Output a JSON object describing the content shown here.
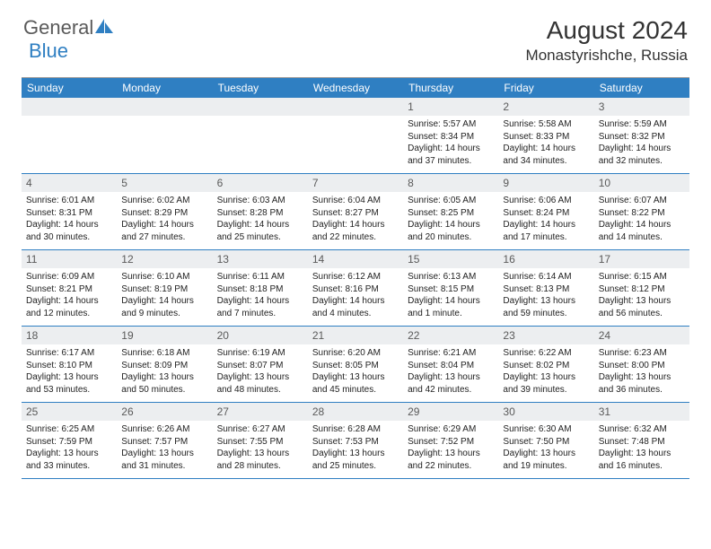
{
  "brand": {
    "name_part1": "General",
    "name_part2": "Blue",
    "logo_color": "#2f7fc2",
    "text_color": "#5a5a5a"
  },
  "title": "August 2024",
  "location": "Monastyrishche, Russia",
  "colors": {
    "header_bg": "#2f7fc2",
    "header_text": "#ffffff",
    "daynum_bg": "#eceef0",
    "daynum_text": "#5a5a5a",
    "body_text": "#222222",
    "rule": "#2f7fc2"
  },
  "weekdays": [
    "Sunday",
    "Monday",
    "Tuesday",
    "Wednesday",
    "Thursday",
    "Friday",
    "Saturday"
  ],
  "weeks": [
    [
      {
        "n": "",
        "sunrise": "",
        "sunset": "",
        "dl1": "",
        "dl2": ""
      },
      {
        "n": "",
        "sunrise": "",
        "sunset": "",
        "dl1": "",
        "dl2": ""
      },
      {
        "n": "",
        "sunrise": "",
        "sunset": "",
        "dl1": "",
        "dl2": ""
      },
      {
        "n": "",
        "sunrise": "",
        "sunset": "",
        "dl1": "",
        "dl2": ""
      },
      {
        "n": "1",
        "sunrise": "Sunrise: 5:57 AM",
        "sunset": "Sunset: 8:34 PM",
        "dl1": "Daylight: 14 hours",
        "dl2": "and 37 minutes."
      },
      {
        "n": "2",
        "sunrise": "Sunrise: 5:58 AM",
        "sunset": "Sunset: 8:33 PM",
        "dl1": "Daylight: 14 hours",
        "dl2": "and 34 minutes."
      },
      {
        "n": "3",
        "sunrise": "Sunrise: 5:59 AM",
        "sunset": "Sunset: 8:32 PM",
        "dl1": "Daylight: 14 hours",
        "dl2": "and 32 minutes."
      }
    ],
    [
      {
        "n": "4",
        "sunrise": "Sunrise: 6:01 AM",
        "sunset": "Sunset: 8:31 PM",
        "dl1": "Daylight: 14 hours",
        "dl2": "and 30 minutes."
      },
      {
        "n": "5",
        "sunrise": "Sunrise: 6:02 AM",
        "sunset": "Sunset: 8:29 PM",
        "dl1": "Daylight: 14 hours",
        "dl2": "and 27 minutes."
      },
      {
        "n": "6",
        "sunrise": "Sunrise: 6:03 AM",
        "sunset": "Sunset: 8:28 PM",
        "dl1": "Daylight: 14 hours",
        "dl2": "and 25 minutes."
      },
      {
        "n": "7",
        "sunrise": "Sunrise: 6:04 AM",
        "sunset": "Sunset: 8:27 PM",
        "dl1": "Daylight: 14 hours",
        "dl2": "and 22 minutes."
      },
      {
        "n": "8",
        "sunrise": "Sunrise: 6:05 AM",
        "sunset": "Sunset: 8:25 PM",
        "dl1": "Daylight: 14 hours",
        "dl2": "and 20 minutes."
      },
      {
        "n": "9",
        "sunrise": "Sunrise: 6:06 AM",
        "sunset": "Sunset: 8:24 PM",
        "dl1": "Daylight: 14 hours",
        "dl2": "and 17 minutes."
      },
      {
        "n": "10",
        "sunrise": "Sunrise: 6:07 AM",
        "sunset": "Sunset: 8:22 PM",
        "dl1": "Daylight: 14 hours",
        "dl2": "and 14 minutes."
      }
    ],
    [
      {
        "n": "11",
        "sunrise": "Sunrise: 6:09 AM",
        "sunset": "Sunset: 8:21 PM",
        "dl1": "Daylight: 14 hours",
        "dl2": "and 12 minutes."
      },
      {
        "n": "12",
        "sunrise": "Sunrise: 6:10 AM",
        "sunset": "Sunset: 8:19 PM",
        "dl1": "Daylight: 14 hours",
        "dl2": "and 9 minutes."
      },
      {
        "n": "13",
        "sunrise": "Sunrise: 6:11 AM",
        "sunset": "Sunset: 8:18 PM",
        "dl1": "Daylight: 14 hours",
        "dl2": "and 7 minutes."
      },
      {
        "n": "14",
        "sunrise": "Sunrise: 6:12 AM",
        "sunset": "Sunset: 8:16 PM",
        "dl1": "Daylight: 14 hours",
        "dl2": "and 4 minutes."
      },
      {
        "n": "15",
        "sunrise": "Sunrise: 6:13 AM",
        "sunset": "Sunset: 8:15 PM",
        "dl1": "Daylight: 14 hours",
        "dl2": "and 1 minute."
      },
      {
        "n": "16",
        "sunrise": "Sunrise: 6:14 AM",
        "sunset": "Sunset: 8:13 PM",
        "dl1": "Daylight: 13 hours",
        "dl2": "and 59 minutes."
      },
      {
        "n": "17",
        "sunrise": "Sunrise: 6:15 AM",
        "sunset": "Sunset: 8:12 PM",
        "dl1": "Daylight: 13 hours",
        "dl2": "and 56 minutes."
      }
    ],
    [
      {
        "n": "18",
        "sunrise": "Sunrise: 6:17 AM",
        "sunset": "Sunset: 8:10 PM",
        "dl1": "Daylight: 13 hours",
        "dl2": "and 53 minutes."
      },
      {
        "n": "19",
        "sunrise": "Sunrise: 6:18 AM",
        "sunset": "Sunset: 8:09 PM",
        "dl1": "Daylight: 13 hours",
        "dl2": "and 50 minutes."
      },
      {
        "n": "20",
        "sunrise": "Sunrise: 6:19 AM",
        "sunset": "Sunset: 8:07 PM",
        "dl1": "Daylight: 13 hours",
        "dl2": "and 48 minutes."
      },
      {
        "n": "21",
        "sunrise": "Sunrise: 6:20 AM",
        "sunset": "Sunset: 8:05 PM",
        "dl1": "Daylight: 13 hours",
        "dl2": "and 45 minutes."
      },
      {
        "n": "22",
        "sunrise": "Sunrise: 6:21 AM",
        "sunset": "Sunset: 8:04 PM",
        "dl1": "Daylight: 13 hours",
        "dl2": "and 42 minutes."
      },
      {
        "n": "23",
        "sunrise": "Sunrise: 6:22 AM",
        "sunset": "Sunset: 8:02 PM",
        "dl1": "Daylight: 13 hours",
        "dl2": "and 39 minutes."
      },
      {
        "n": "24",
        "sunrise": "Sunrise: 6:23 AM",
        "sunset": "Sunset: 8:00 PM",
        "dl1": "Daylight: 13 hours",
        "dl2": "and 36 minutes."
      }
    ],
    [
      {
        "n": "25",
        "sunrise": "Sunrise: 6:25 AM",
        "sunset": "Sunset: 7:59 PM",
        "dl1": "Daylight: 13 hours",
        "dl2": "and 33 minutes."
      },
      {
        "n": "26",
        "sunrise": "Sunrise: 6:26 AM",
        "sunset": "Sunset: 7:57 PM",
        "dl1": "Daylight: 13 hours",
        "dl2": "and 31 minutes."
      },
      {
        "n": "27",
        "sunrise": "Sunrise: 6:27 AM",
        "sunset": "Sunset: 7:55 PM",
        "dl1": "Daylight: 13 hours",
        "dl2": "and 28 minutes."
      },
      {
        "n": "28",
        "sunrise": "Sunrise: 6:28 AM",
        "sunset": "Sunset: 7:53 PM",
        "dl1": "Daylight: 13 hours",
        "dl2": "and 25 minutes."
      },
      {
        "n": "29",
        "sunrise": "Sunrise: 6:29 AM",
        "sunset": "Sunset: 7:52 PM",
        "dl1": "Daylight: 13 hours",
        "dl2": "and 22 minutes."
      },
      {
        "n": "30",
        "sunrise": "Sunrise: 6:30 AM",
        "sunset": "Sunset: 7:50 PM",
        "dl1": "Daylight: 13 hours",
        "dl2": "and 19 minutes."
      },
      {
        "n": "31",
        "sunrise": "Sunrise: 6:32 AM",
        "sunset": "Sunset: 7:48 PM",
        "dl1": "Daylight: 13 hours",
        "dl2": "and 16 minutes."
      }
    ]
  ]
}
